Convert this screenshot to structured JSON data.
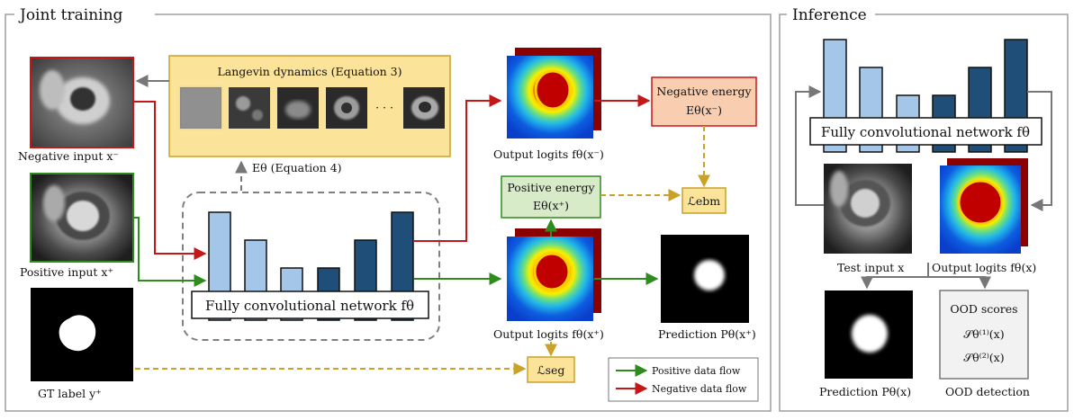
{
  "panels": {
    "joint_title": "Joint training",
    "inference_title": "Inference"
  },
  "boxes": {
    "langevin": "Langevin dynamics (Equation 3)",
    "negative_energy_title": "Negative energy",
    "negative_energy_formula": "Eθ(x⁻)",
    "positive_energy_title": "Positive energy",
    "positive_energy_formula": "Eθ(x⁺)",
    "l_ebm": "ℒebm",
    "l_seg": "ℒseg",
    "fcn_joint": "Fully convolutional network fθ",
    "fcn_inference": "Fully convolutional network fθ",
    "ood_title": "OOD scores",
    "ood_s1": "𝒮θ⁽¹⁾(x)",
    "ood_s2": "𝒮θ⁽²⁾(x)"
  },
  "labels": {
    "e_theta_eq4": "Eθ (Equation 4)",
    "negative_input": "Negative input x⁻",
    "positive_input": "Positive input x⁺",
    "gt_label": "GT label y⁺",
    "output_logits_neg": "Output logits fθ(x⁻)",
    "output_logits_pos": "Output logits fθ(x⁺)",
    "prediction_pos": "Prediction Pθ(x⁺)",
    "test_input": "Test input x",
    "output_logits_x": "Output logits fθ(x)",
    "prediction_x": "Prediction Pθ(x)",
    "ood_detection": "OOD detection",
    "ellipsis": "· · ·"
  },
  "legend": {
    "positive": "Positive data flow",
    "negative": "Negative data flow"
  },
  "colors": {
    "positive_flow": "#2e8b1e",
    "negative_flow": "#c41818",
    "loss_flow": "#c9a227",
    "light_bar": "#a4c6e8",
    "dark_bar": "#1f4e79",
    "langevin_fill": "#fbe39a",
    "neg_energy_fill": "#f8cdb0",
    "pos_energy_fill": "#d7ebc9",
    "loss_fill": "#fbe39a",
    "ood_fill": "#f2f2f2"
  }
}
